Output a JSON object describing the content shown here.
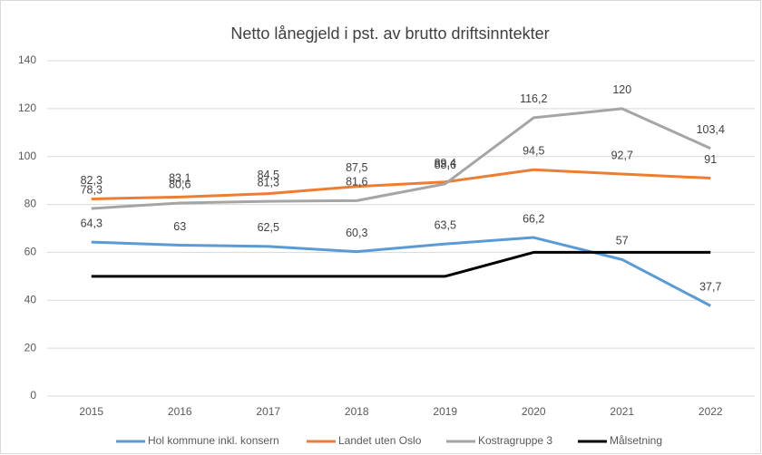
{
  "chart_data": {
    "type": "line",
    "title": "Netto lånegjeld i pst. av brutto driftsinntekter",
    "categories": [
      "2015",
      "2016",
      "2017",
      "2018",
      "2019",
      "2020",
      "2021",
      "2022"
    ],
    "ylim": [
      0,
      140
    ],
    "yticks": [
      0,
      20,
      40,
      60,
      80,
      100,
      120,
      140
    ],
    "grid": true,
    "legend": "bottom",
    "series": [
      {
        "name": "Hol kommune inkl. konsern",
        "color": "#5b9bd5",
        "values": [
          64.3,
          63,
          62.5,
          60.3,
          63.5,
          66.2,
          57,
          37.7
        ],
        "value_labels": [
          "64,3",
          "63",
          "62,5",
          "60,3",
          "63,5",
          "66,2",
          "57",
          "37,7"
        ]
      },
      {
        "name": "Landet uten Oslo",
        "color": "#ed7d31",
        "values": [
          82.3,
          83.1,
          84.5,
          87.5,
          89.4,
          94.5,
          92.7,
          91
        ],
        "value_labels": [
          "82,3",
          "83,1",
          "84,5",
          "87,5",
          "89,4",
          "94,5",
          "92,7",
          "91"
        ]
      },
      {
        "name": "Kostragruppe 3",
        "color": "#a5a5a5",
        "values": [
          78.3,
          80.6,
          81.3,
          81.6,
          88.6,
          116.2,
          120,
          103.4
        ],
        "value_labels": [
          "78,3",
          "80,6",
          "81,3",
          "81,6",
          "88,6",
          "116,2",
          "120",
          "103,4"
        ]
      },
      {
        "name": "Målsetning",
        "color": "#000000",
        "values": [
          50,
          50,
          50,
          50,
          50,
          60,
          60,
          60
        ]
      }
    ]
  }
}
